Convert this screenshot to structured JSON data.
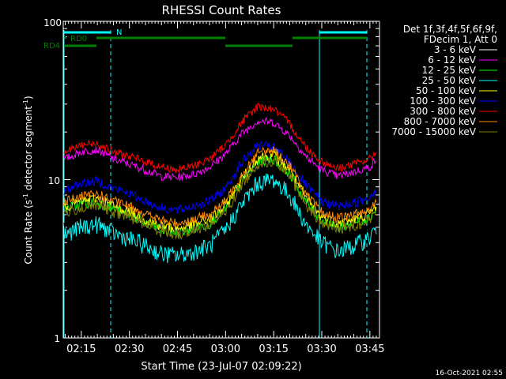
{
  "chart_data": {
    "type": "line",
    "title": "RHESSI Count Rates",
    "xlabel": "Start Time (23-Jul-07 02:09:22)",
    "ylabel_parts": {
      "a": "Count Rate (s",
      "b": "-1",
      "c": " detector segment",
      "d": "-1",
      "e": ")"
    },
    "yscale": "log",
    "ylim": [
      1,
      100
    ],
    "xlim": [
      "02:09:22",
      "03:48:00"
    ],
    "x_ticks": [
      "02:15",
      "02:30",
      "02:45",
      "03:00",
      "03:15",
      "03:30",
      "03:45"
    ],
    "y_ticks": [
      "1",
      "10",
      "100"
    ],
    "legend_header": [
      "Det 1f,3f,4f,5f,6f,9f,",
      "FDecim 1, Att 0"
    ],
    "legend_position": "right",
    "x_times": [
      "02:10",
      "02:15",
      "02:20",
      "02:25",
      "02:30",
      "02:35",
      "02:40",
      "02:45",
      "02:50",
      "02:55",
      "03:00",
      "03:05",
      "03:10",
      "03:15",
      "03:20",
      "03:25",
      "03:30",
      "03:35",
      "03:40",
      "03:45",
      "03:47"
    ],
    "series": [
      {
        "name": "3 - 6 keV",
        "color": "#000000",
        "values": [
          5.2,
          5.8,
          6.2,
          5.2,
          4.5,
          4.0,
          3.6,
          3.4,
          3.6,
          4.0,
          5.0,
          7.5,
          10.0,
          10.5,
          8.5,
          5.8,
          4.2,
          3.6,
          4.0,
          4.8,
          5.5
        ]
      },
      {
        "name": "6 - 12 keV",
        "color": "#ff00ff",
        "values": [
          13.5,
          15.0,
          15.5,
          13.5,
          12.5,
          11.5,
          10.5,
          10.3,
          10.8,
          12.0,
          14.5,
          19.5,
          23.5,
          23.0,
          19.0,
          14.0,
          11.5,
          10.5,
          11.2,
          12.0,
          13.5
        ]
      },
      {
        "name": "12 - 25 keV",
        "color": "#00ff00",
        "values": [
          6.5,
          7.0,
          7.2,
          6.5,
          6.0,
          5.3,
          4.8,
          4.6,
          4.9,
          5.3,
          6.5,
          9.5,
          13.0,
          13.5,
          11.0,
          7.2,
          5.5,
          5.0,
          5.3,
          5.8,
          6.5
        ]
      },
      {
        "name": "25 - 50 keV",
        "color": "#00ffff",
        "values": [
          4.5,
          5.0,
          5.2,
          4.6,
          4.2,
          3.8,
          3.4,
          3.3,
          3.5,
          3.8,
          4.8,
          7.0,
          9.5,
          10.0,
          8.0,
          5.2,
          4.0,
          3.5,
          3.8,
          4.3,
          5.0
        ]
      },
      {
        "name": "50 - 100 keV",
        "color": "#ffff00",
        "values": [
          6.8,
          7.3,
          7.6,
          6.8,
          6.3,
          5.6,
          5.1,
          4.9,
          5.2,
          5.6,
          6.8,
          10.0,
          13.8,
          14.3,
          11.6,
          7.6,
          5.8,
          5.3,
          5.6,
          6.1,
          6.8
        ]
      },
      {
        "name": "100 - 300 keV",
        "color": "#0000ff",
        "values": [
          8.5,
          9.5,
          9.8,
          8.8,
          8.2,
          7.3,
          6.6,
          6.4,
          6.8,
          7.3,
          8.8,
          12.8,
          16.5,
          16.0,
          13.0,
          9.2,
          7.3,
          6.8,
          7.1,
          7.8,
          8.8
        ]
      },
      {
        "name": "300 - 800 keV",
        "color": "#ff0000",
        "values": [
          15.0,
          16.5,
          17.0,
          15.0,
          14.0,
          13.0,
          12.0,
          11.5,
          12.2,
          13.5,
          16.5,
          23.0,
          29.0,
          28.0,
          22.5,
          16.0,
          13.0,
          11.8,
          12.5,
          13.5,
          15.0
        ]
      },
      {
        "name": "800 - 7000 keV",
        "color": "#ff8c00",
        "values": [
          7.3,
          7.8,
          8.1,
          7.3,
          6.8,
          6.1,
          5.5,
          5.3,
          5.6,
          6.0,
          7.3,
          10.8,
          14.8,
          15.3,
          12.4,
          8.1,
          6.2,
          5.7,
          6.0,
          6.5,
          7.3
        ]
      },
      {
        "name": "7000 - 15000 keV",
        "color": "#808000",
        "values": [
          6.2,
          6.6,
          6.9,
          6.2,
          5.8,
          5.2,
          4.7,
          4.5,
          4.8,
          5.2,
          6.2,
          9.2,
          12.6,
          13.0,
          10.6,
          6.9,
          5.3,
          4.9,
          5.1,
          5.6,
          6.2
        ]
      }
    ],
    "annotations": {
      "n_label": "N",
      "rd0_label": "RD0",
      "rd4_label": "RD4",
      "timestamp": "16-Oct-2021 02:55"
    },
    "colors": {
      "background": "#000000",
      "axes": "#ffffff",
      "cyan_marker": "#00ffff",
      "green_bar": "#008000"
    }
  }
}
